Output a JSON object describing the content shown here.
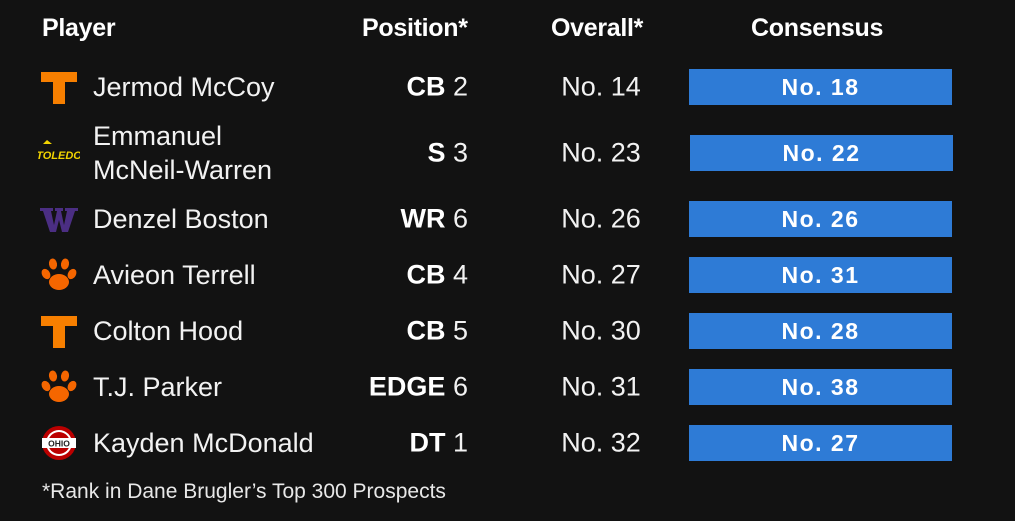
{
  "headers": {
    "player": "Player",
    "position": "Position*",
    "overall": "Overall*",
    "consensus": "Consensus"
  },
  "colors": {
    "background": "#121212",
    "consensus_bar": "#2e7bd6",
    "tennessee": "#f77f00",
    "toledo": "#f2d400",
    "washington": "#4b2e83",
    "clemson": "#f56600",
    "ohio_state": "#bb0000"
  },
  "rows": [
    {
      "logo": "tennessee-logo-icon",
      "name_line1": "Jermod McCoy",
      "name_line2": "",
      "pos_code": "CB",
      "pos_rank": "2",
      "overall": "No. 14",
      "consensus": "No. 18"
    },
    {
      "logo": "toledo-logo-icon",
      "name_line1": "Emmanuel",
      "name_line2": "McNeil-Warren",
      "pos_code": "S",
      "pos_rank": "3",
      "overall": "No. 23",
      "consensus": "No. 22"
    },
    {
      "logo": "washington-logo-icon",
      "name_line1": "Denzel Boston",
      "name_line2": "",
      "pos_code": "WR",
      "pos_rank": "6",
      "overall": "No. 26",
      "consensus": "No. 26"
    },
    {
      "logo": "clemson-logo-icon",
      "name_line1": "Avieon Terrell",
      "name_line2": "",
      "pos_code": "CB",
      "pos_rank": "4",
      "overall": "No. 27",
      "consensus": "No. 31"
    },
    {
      "logo": "tennessee-logo-icon",
      "name_line1": "Colton Hood",
      "name_line2": "",
      "pos_code": "CB",
      "pos_rank": "5",
      "overall": "No. 30",
      "consensus": "No. 28"
    },
    {
      "logo": "clemson-logo-icon",
      "name_line1": "T.J. Parker",
      "name_line2": "",
      "pos_code": "EDGE",
      "pos_rank": "6",
      "overall": "No. 31",
      "consensus": "No. 38"
    },
    {
      "logo": "ohio-state-logo-icon",
      "name_line1": "Kayden McDonald",
      "name_line2": "",
      "pos_code": "DT",
      "pos_rank": "1",
      "overall": "No. 32",
      "consensus": "No. 27"
    }
  ],
  "footnote": "*Rank in Dane Brugler’s Top 300 Prospects"
}
